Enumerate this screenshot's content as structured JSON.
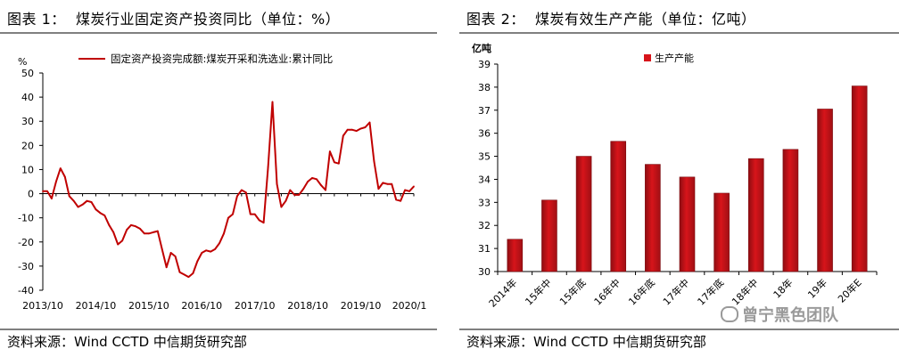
{
  "left_panel": {
    "title": "图表 1：  煤炭行业固定资产投资同比（单位：%）",
    "source": "资料来源：Wind CCTD 中信期货研究部"
  },
  "right_panel": {
    "title": "图表 2：  煤炭有效生产产能（单位：亿吨）",
    "source": "资料来源：Wind CCTD 中信期货研究部"
  },
  "watermark": "曾宁黑色团队",
  "colors": {
    "line": "#c00000",
    "bar": "#d7141a",
    "rule": "#808080"
  },
  "chart_data": [
    {
      "type": "line",
      "title": "",
      "ylabel": "%",
      "ylim": [
        -40,
        50
      ],
      "yticks": [
        -40,
        -30,
        -20,
        -10,
        0,
        10,
        20,
        30,
        40,
        50
      ],
      "x_tick_labels": [
        "2013/10",
        "2014/10",
        "2015/10",
        "2016/10",
        "2017/10",
        "2018/10",
        "2019/10",
        "2020/1"
      ],
      "x_tick_index": [
        0,
        12,
        24,
        36,
        48,
        60,
        72,
        83
      ],
      "grid": false,
      "legend": "top",
      "series": [
        {
          "name": "固定资产投资完成额:煤炭开采和洗选业:累计同比",
          "values": [
            1,
            1,
            -2,
            5,
            10.5,
            7,
            -1,
            -3,
            -5.5,
            -4.5,
            -3,
            -3.5,
            -6.5,
            -8,
            -9,
            -13,
            -16,
            -21,
            -19.5,
            -15,
            -13,
            -13.5,
            -14.5,
            -16.5,
            -16.5,
            -16,
            -15.5,
            -23,
            -30.5,
            -24.5,
            -26,
            -32.5,
            -33.5,
            -34.5,
            -33,
            -28,
            -24.5,
            -23.5,
            -24,
            -23,
            -20.5,
            -16.5,
            -10,
            -8.5,
            -1,
            1.5,
            0.5,
            -8.5,
            -8.5,
            -11,
            -12,
            11,
            38,
            4,
            -5.5,
            -3,
            1.5,
            -0.5,
            -0.5,
            2,
            5,
            6.5,
            6,
            3.5,
            1.5,
            17.5,
            13,
            12.5,
            24,
            26.5,
            26.5,
            26,
            27,
            27.5,
            29.5,
            13.5,
            2,
            4.5,
            4,
            4,
            -2.5,
            -3,
            1.5,
            1,
            3
          ]
        }
      ]
    },
    {
      "type": "bar",
      "title": "",
      "ylabel": "亿吨",
      "ylim": [
        30,
        39
      ],
      "yticks": [
        30,
        31,
        32,
        33,
        34,
        35,
        36,
        37,
        38,
        39
      ],
      "legend": "top-left",
      "grid": false,
      "categories": [
        "2014年",
        "15年中",
        "15年底",
        "16年中",
        "16年底",
        "17年中",
        "17年底",
        "18年中",
        "18年",
        "19年",
        "20年E"
      ],
      "series": [
        {
          "name": "生产产能",
          "values": [
            31.4,
            33.1,
            35.0,
            35.65,
            34.65,
            34.1,
            33.4,
            34.9,
            35.3,
            37.05,
            38.05
          ]
        }
      ]
    }
  ]
}
